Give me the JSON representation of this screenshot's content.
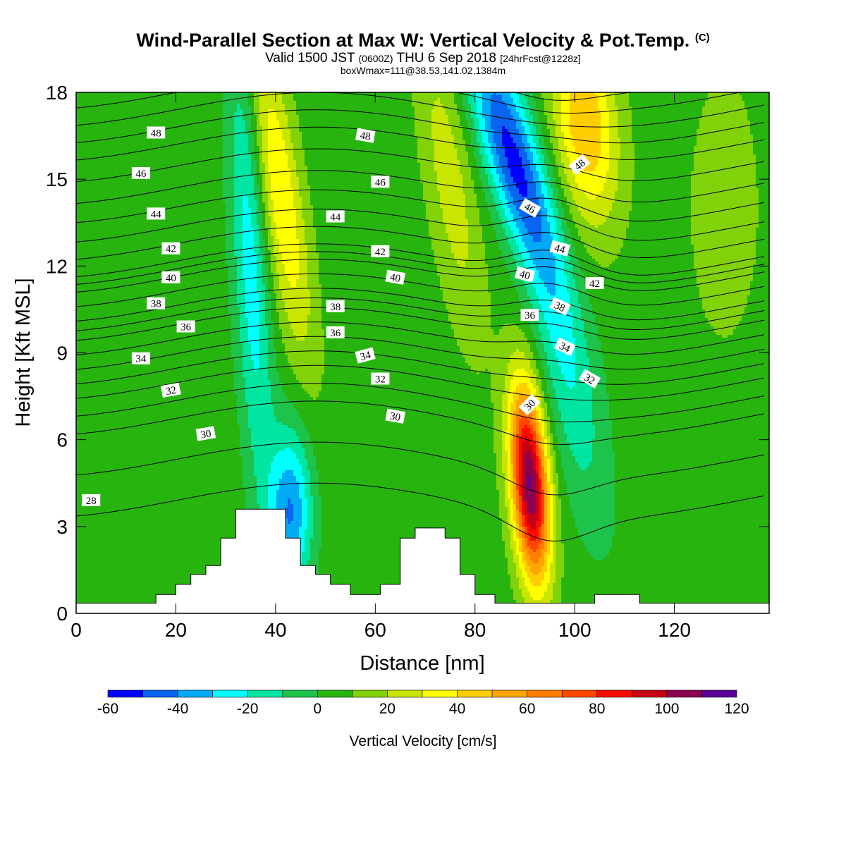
{
  "titles": {
    "main": "Wind-Parallel Section at Max W: Vertical Velocity & Pot.Temp.",
    "copyright": "(C)",
    "valid_a": "Valid 1500 JST",
    "valid_utc": "(0600Z)",
    "valid_b": "THU 6 Sep 2018",
    "forecast": "[24hrFcst@1228z]",
    "box": "boxWmax=111@38.53,141.02,1384m"
  },
  "chart_data": {
    "type": "heatmap",
    "title": "Wind-Parallel Section at Max W: Vertical Velocity & Pot.Temp.",
    "xlabel": "Distance [nm]",
    "ylabel": "Height [Kft MSL]",
    "xlim": [
      0,
      139
    ],
    "ylim": [
      0,
      18
    ],
    "xticks": [
      0,
      20,
      40,
      60,
      80,
      100,
      120
    ],
    "yticks": [
      0,
      3,
      6,
      9,
      12,
      15,
      18
    ],
    "colorbar": {
      "label": "Vertical Velocity [cm/s]",
      "ticks": [
        -60,
        -40,
        -20,
        0,
        20,
        40,
        60,
        80,
        100,
        120
      ],
      "levels": [
        -60,
        -50,
        -40,
        -30,
        -20,
        -10,
        0,
        10,
        20,
        30,
        40,
        50,
        60,
        70,
        80,
        90,
        100,
        110,
        120
      ],
      "colors": [
        "#0000ff",
        "#0a64f0",
        "#00aaf5",
        "#00ffff",
        "#00e6a0",
        "#1ec34b",
        "#28b40f",
        "#82d20a",
        "#c8e600",
        "#ffff00",
        "#ffcd00",
        "#ffa500",
        "#ff7d00",
        "#ff4600",
        "#ff0a00",
        "#c80014",
        "#8c0050",
        "#5a0096"
      ]
    },
    "background_value": 5,
    "features": [
      {
        "name": "updraft-upper-left",
        "x": 41,
        "y": 14.5,
        "value": 40
      },
      {
        "name": "downdraft-upper-left",
        "x": 35,
        "y": 12,
        "value": -25
      },
      {
        "name": "downdraft-lower-left",
        "x": 43,
        "y": 3.5,
        "value": -40
      },
      {
        "name": "updraft-upper-mid",
        "x": 75,
        "y": 15,
        "value": 25
      },
      {
        "name": "downdraft-upper-right",
        "x": 87,
        "y": 16,
        "value": -50
      },
      {
        "name": "updraft-top-right",
        "x": 102,
        "y": 17,
        "value": 50
      },
      {
        "name": "updraft-max",
        "x": 91,
        "y": 4.5,
        "value": 111
      },
      {
        "name": "downdraft-right",
        "x": 98,
        "y": 9,
        "value": -20
      },
      {
        "name": "updraft-right",
        "x": 130,
        "y": 14,
        "value": 20
      }
    ],
    "isentrope_labels": [
      {
        "text": "48",
        "x": 16,
        "y": 16.6,
        "angle": 0
      },
      {
        "text": "46",
        "x": 13,
        "y": 15.2,
        "angle": 0
      },
      {
        "text": "44",
        "x": 16,
        "y": 13.8,
        "angle": 0
      },
      {
        "text": "42",
        "x": 19,
        "y": 12.6,
        "angle": 0
      },
      {
        "text": "40",
        "x": 19,
        "y": 11.6,
        "angle": 0
      },
      {
        "text": "38",
        "x": 16,
        "y": 10.7,
        "angle": 0
      },
      {
        "text": "36",
        "x": 22,
        "y": 9.9,
        "angle": 0
      },
      {
        "text": "34",
        "x": 13,
        "y": 8.8,
        "angle": 0
      },
      {
        "text": "32",
        "x": 19,
        "y": 7.7,
        "angle": -10
      },
      {
        "text": "30",
        "x": 26,
        "y": 6.2,
        "angle": -10
      },
      {
        "text": "28",
        "x": 3,
        "y": 3.9,
        "angle": 0
      },
      {
        "text": "48",
        "x": 58,
        "y": 16.5,
        "angle": 10
      },
      {
        "text": "46",
        "x": 61,
        "y": 14.9,
        "angle": 0
      },
      {
        "text": "44",
        "x": 52,
        "y": 13.7,
        "angle": 0
      },
      {
        "text": "42",
        "x": 61,
        "y": 12.5,
        "angle": 0
      },
      {
        "text": "40",
        "x": 64,
        "y": 11.6,
        "angle": 10
      },
      {
        "text": "38",
        "x": 52,
        "y": 10.6,
        "angle": 0
      },
      {
        "text": "36",
        "x": 52,
        "y": 9.7,
        "angle": 0
      },
      {
        "text": "34",
        "x": 58,
        "y": 8.9,
        "angle": -15
      },
      {
        "text": "32",
        "x": 61,
        "y": 8.1,
        "angle": 0
      },
      {
        "text": "30",
        "x": 64,
        "y": 6.8,
        "angle": 10
      },
      {
        "text": "48",
        "x": 101,
        "y": 15.5,
        "angle": -40
      },
      {
        "text": "46",
        "x": 91,
        "y": 14.0,
        "angle": 30
      },
      {
        "text": "44",
        "x": 97,
        "y": 12.6,
        "angle": 15
      },
      {
        "text": "42",
        "x": 104,
        "y": 11.4,
        "angle": 0
      },
      {
        "text": "40",
        "x": 90,
        "y": 11.7,
        "angle": 15
      },
      {
        "text": "38",
        "x": 97,
        "y": 10.6,
        "angle": 25
      },
      {
        "text": "36",
        "x": 91,
        "y": 10.3,
        "angle": 0
      },
      {
        "text": "34",
        "x": 98,
        "y": 9.2,
        "angle": 25
      },
      {
        "text": "32",
        "x": 103,
        "y": 8.1,
        "angle": 30
      },
      {
        "text": "30",
        "x": 91,
        "y": 7.2,
        "angle": -45
      }
    ],
    "terrain": [
      [
        0,
        0.35
      ],
      [
        16,
        0.35
      ],
      [
        16,
        0.65
      ],
      [
        20,
        0.65
      ],
      [
        20,
        1.0
      ],
      [
        23,
        1.0
      ],
      [
        23,
        1.35
      ],
      [
        26,
        1.35
      ],
      [
        26,
        1.65
      ],
      [
        29,
        1.65
      ],
      [
        29,
        2.6
      ],
      [
        32,
        2.6
      ],
      [
        32,
        3.6
      ],
      [
        42,
        3.6
      ],
      [
        42,
        2.6
      ],
      [
        45,
        2.6
      ],
      [
        45,
        1.65
      ],
      [
        48,
        1.65
      ],
      [
        48,
        1.35
      ],
      [
        51,
        1.35
      ],
      [
        51,
        1.0
      ],
      [
        55,
        1.0
      ],
      [
        55,
        0.65
      ],
      [
        61,
        0.65
      ],
      [
        61,
        1.0
      ],
      [
        65,
        1.0
      ],
      [
        65,
        2.6
      ],
      [
        68,
        2.6
      ],
      [
        68,
        2.95
      ],
      [
        74,
        2.95
      ],
      [
        74,
        2.6
      ],
      [
        77,
        2.6
      ],
      [
        77,
        1.35
      ],
      [
        80,
        1.35
      ],
      [
        80,
        0.65
      ],
      [
        84,
        0.65
      ],
      [
        84,
        0.35
      ],
      [
        104,
        0.35
      ],
      [
        104,
        0.65
      ],
      [
        113,
        0.65
      ],
      [
        113,
        0.35
      ],
      [
        139,
        0.35
      ]
    ]
  }
}
